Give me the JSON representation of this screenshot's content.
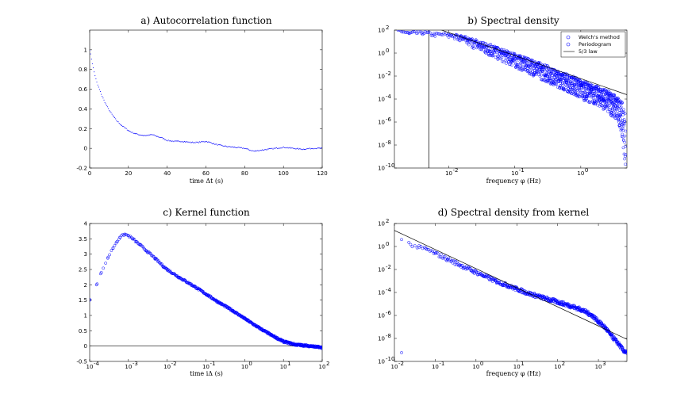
{
  "chart_data": [
    {
      "id": "a",
      "type": "line",
      "title": "a) Autocorrelation function",
      "xlabel": "time Δt (s)",
      "ylabel": "",
      "x_scale": "linear",
      "y_scale": "linear",
      "xlim": [
        0,
        120
      ],
      "ylim": [
        -0.2,
        1.2
      ],
      "x_ticks": [
        0,
        20,
        40,
        60,
        80,
        100,
        120
      ],
      "y_ticks": [
        -0.2,
        0,
        0.2,
        0.4,
        0.6,
        0.8,
        1
      ],
      "x_tick_labels": [
        "0",
        "20",
        "40",
        "60",
        "80",
        "100",
        "120"
      ],
      "y_tick_labels": [
        "-0.2",
        "0",
        "0.2",
        "0.4",
        "0.6",
        "0.8",
        "1"
      ],
      "series": [
        {
          "marker": "dots",
          "color": "#0000ff",
          "x": [
            0,
            1,
            2,
            3,
            4,
            6,
            8,
            10,
            12,
            14,
            16,
            18,
            20,
            22,
            25,
            28,
            30,
            32,
            35,
            38,
            40,
            44,
            48,
            52,
            56,
            60,
            62,
            65,
            70,
            75,
            80,
            83,
            85,
            88,
            92,
            96,
            100,
            105,
            110,
            115,
            120
          ],
          "y": [
            1.0,
            0.9,
            0.8,
            0.72,
            0.65,
            0.55,
            0.46,
            0.39,
            0.33,
            0.28,
            0.24,
            0.21,
            0.18,
            0.16,
            0.14,
            0.13,
            0.13,
            0.14,
            0.12,
            0.1,
            0.08,
            0.07,
            0.07,
            0.06,
            0.06,
            0.07,
            0.06,
            0.04,
            0.02,
            0.01,
            0.0,
            -0.02,
            -0.03,
            -0.02,
            -0.01,
            0.0,
            0.01,
            0.0,
            -0.01,
            0.0,
            0.0
          ]
        }
      ]
    },
    {
      "id": "b",
      "type": "scatter",
      "title": "b) Spectral density",
      "xlabel": "frequency φ (Hz)",
      "ylabel": "",
      "x_scale": "log",
      "y_scale": "log",
      "xlim": [
        0.0015,
        5
      ],
      "ylim": [
        1e-10,
        100.0
      ],
      "x_ticks": [
        0.01,
        0.1,
        1
      ],
      "y_ticks": [
        1e-10,
        1e-08,
        1e-06,
        0.0001,
        0.01,
        1,
        100
      ],
      "x_tick_labels": [
        "10",
        "10",
        "10"
      ],
      "x_tick_exponents": [
        "-2",
        "-1",
        "0"
      ],
      "y_tick_labels": [
        "10",
        "10",
        "10",
        "10",
        "10",
        "10",
        "10"
      ],
      "y_tick_exponents": [
        "-10",
        "-8",
        "-6",
        "-4",
        "-2",
        "0",
        "2"
      ],
      "vline_x": 0.005,
      "legend": {
        "position": "top-right",
        "entries": [
          {
            "label": "Welch's method",
            "style": "circle",
            "color": "#0000ff"
          },
          {
            "label": "Periodogram",
            "style": "circle",
            "color": "#0000ff"
          },
          {
            "label": "5/3 law",
            "style": "line",
            "color": "#000000"
          }
        ]
      },
      "series": [
        {
          "name": "Welch's method",
          "marker": "circle",
          "color": "#0000ff",
          "x": [
            0.0017,
            0.0025,
            0.004,
            0.006,
            0.01,
            0.015,
            0.02,
            0.03,
            0.05,
            0.08,
            0.12,
            0.2,
            0.3,
            0.5,
            0.8,
            1.2,
            2,
            3,
            4
          ],
          "y": [
            100,
            50,
            60,
            40,
            40,
            25,
            15,
            8,
            3,
            1,
            0.4,
            0.15,
            0.06,
            0.02,
            0.006,
            0.002,
            0.0007,
            0.0002,
            5e-05
          ]
        },
        {
          "name": "Periodogram",
          "marker": "circle-band",
          "color": "#0000ff",
          "x": [
            0.01,
            0.02,
            0.04,
            0.08,
            0.15,
            0.3,
            0.6,
            1,
            2,
            3,
            4,
            4.8
          ],
          "y_upper": [
            60,
            25,
            6,
            1.5,
            0.4,
            0.08,
            0.015,
            0.005,
            0.001,
            0.0004,
            0.0001,
            1e-05
          ],
          "y_lower": [
            20,
            4,
            0.6,
            0.1,
            0.02,
            0.003,
            0.0005,
            0.0001,
            2e-05,
            3e-06,
            3e-07,
            1e-10
          ]
        },
        {
          "name": "5/3 law",
          "marker": "line",
          "color": "#000000",
          "x": [
            0.0045,
            5
          ],
          "y": [
            300,
            0.00024
          ]
        }
      ]
    },
    {
      "id": "c",
      "type": "scatter",
      "title": "c) Kernel function",
      "xlabel": "time iΔ (s)",
      "ylabel": "",
      "x_scale": "log",
      "y_scale": "linear",
      "xlim": [
        0.0001,
        100
      ],
      "ylim": [
        -0.5,
        4
      ],
      "x_ticks": [
        0.0001,
        0.001,
        0.01,
        0.1,
        1,
        10,
        100
      ],
      "y_ticks": [
        -0.5,
        0,
        0.5,
        1,
        1.5,
        2,
        2.5,
        3,
        3.5,
        4
      ],
      "x_tick_labels": [
        "10",
        "10",
        "10",
        "10",
        "10",
        "10",
        "10"
      ],
      "x_tick_exponents": [
        "-4",
        "-3",
        "-2",
        "-1",
        "0",
        "1",
        "2"
      ],
      "y_tick_labels": [
        "-0.5",
        "0",
        "0.5",
        "1",
        "1.5",
        "2",
        "2.5",
        "3",
        "3.5",
        "4"
      ],
      "hline_y": 0,
      "series": [
        {
          "marker": "circle",
          "color": "#0000ff",
          "x": [
            0.0001,
            0.00015,
            0.0002,
            0.0003,
            0.0004,
            0.0005,
            0.0006,
            0.0008,
            0.001,
            0.0013,
            0.0016,
            0.002,
            0.003,
            0.005,
            0.008,
            0.01,
            0.02,
            0.05,
            0.1,
            0.2,
            0.5,
            1,
            2,
            5,
            10,
            20,
            50,
            100
          ],
          "y": [
            1.5,
            2.0,
            2.4,
            2.9,
            3.2,
            3.4,
            3.55,
            3.65,
            3.6,
            3.5,
            3.4,
            3.3,
            3.1,
            2.85,
            2.6,
            2.5,
            2.25,
            1.95,
            1.7,
            1.45,
            1.15,
            0.9,
            0.65,
            0.35,
            0.15,
            0.05,
            0.0,
            -0.05
          ]
        }
      ]
    },
    {
      "id": "d",
      "type": "scatter",
      "title": "d) Spectral density from kernel",
      "xlabel": "frequency φ (Hz)",
      "ylabel": "",
      "x_scale": "log",
      "y_scale": "log",
      "xlim": [
        0.01,
        5000
      ],
      "ylim": [
        1e-10,
        100.0
      ],
      "x_ticks": [
        0.01,
        0.1,
        1,
        10,
        100,
        1000
      ],
      "y_ticks": [
        1e-10,
        1e-08,
        1e-06,
        0.0001,
        0.01,
        1,
        100
      ],
      "x_tick_labels": [
        "10",
        "10",
        "10",
        "10",
        "10",
        "10"
      ],
      "x_tick_exponents": [
        "-2",
        "-1",
        "0",
        "1",
        "2",
        "3"
      ],
      "y_tick_labels": [
        "10",
        "10",
        "10",
        "10",
        "10",
        "10",
        "10"
      ],
      "y_tick_exponents": [
        "-10",
        "-8",
        "-6",
        "-4",
        "-2",
        "0",
        "2"
      ],
      "series": [
        {
          "marker": "circle",
          "color": "#0000ff",
          "x": [
            0.015,
            0.025,
            0.04,
            0.06,
            0.1,
            0.2,
            0.4,
            0.8,
            1.5,
            3,
            6,
            10,
            20,
            50,
            100,
            200,
            400,
            700,
            1000,
            1500,
            2000,
            3000,
            4000,
            5000
          ],
          "y": [
            4,
            1.5,
            0.8,
            0.6,
            0.25,
            0.08,
            0.025,
            0.008,
            0.003,
            0.001,
            0.0004,
            0.0002,
            8e-05,
            3e-05,
            1.5e-05,
            7e-06,
            3e-06,
            1e-06,
            3e-07,
            8e-08,
            2e-08,
            4e-09,
            1e-09,
            5e-10
          ]
        },
        {
          "name": "5/3 law",
          "marker": "line",
          "color": "#000000",
          "x": [
            0.01,
            5000
          ],
          "y": [
            25,
            8.4e-09
          ]
        }
      ]
    }
  ]
}
